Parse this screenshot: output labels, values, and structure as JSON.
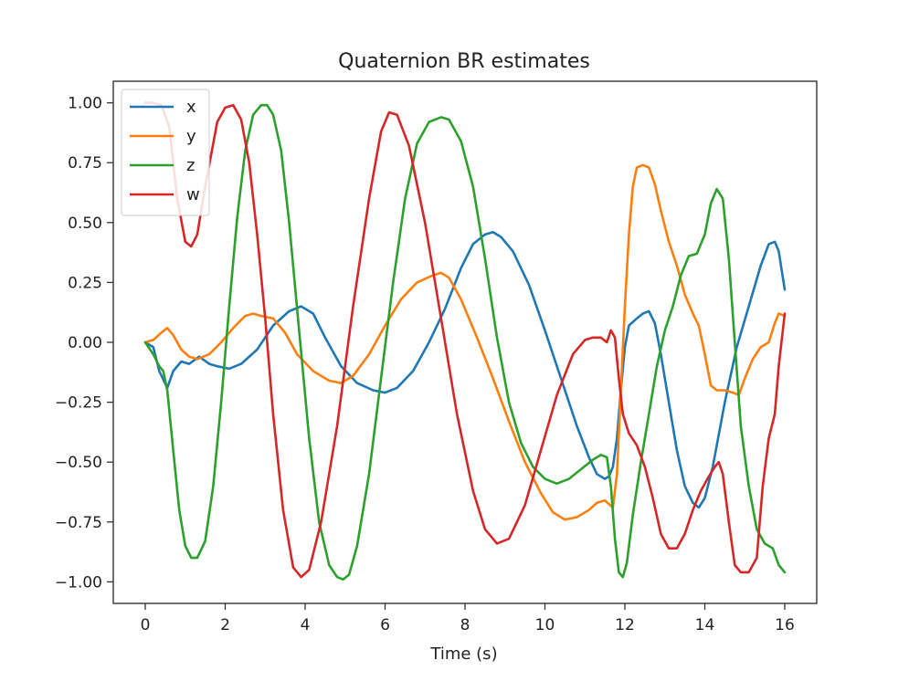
{
  "chart_data": {
    "type": "line",
    "title": "Quaternion BR estimates",
    "xlabel": "Time (s)",
    "ylabel": "",
    "xlim": [
      -0.8,
      16.8
    ],
    "ylim": [
      -1.09,
      1.09
    ],
    "xticks": [
      0,
      2,
      4,
      6,
      8,
      10,
      12,
      14,
      16
    ],
    "xtick_labels": [
      "0",
      "2",
      "4",
      "6",
      "8",
      "10",
      "12",
      "14",
      "16"
    ],
    "yticks": [
      1.0,
      0.75,
      0.5,
      0.25,
      0.0,
      -0.25,
      -0.5,
      -0.75,
      -1.0
    ],
    "ytick_labels": [
      "1.00",
      "0.75",
      "0.50",
      "0.25",
      "0.00",
      "−0.25",
      "−0.50",
      "−0.75",
      "−1.00"
    ],
    "grid": false,
    "legend_position": "upper-left",
    "series": [
      {
        "name": "x",
        "color": "#1f77b4",
        "points": [
          [
            0,
            0
          ],
          [
            0.2,
            -0.02
          ],
          [
            0.35,
            -0.12
          ],
          [
            0.55,
            -0.19
          ],
          [
            0.7,
            -0.12
          ],
          [
            0.9,
            -0.08
          ],
          [
            1.1,
            -0.09
          ],
          [
            1.35,
            -0.06
          ],
          [
            1.6,
            -0.09
          ],
          [
            1.8,
            -0.1
          ],
          [
            2.1,
            -0.11
          ],
          [
            2.4,
            -0.09
          ],
          [
            2.8,
            -0.03
          ],
          [
            3.2,
            0.07
          ],
          [
            3.6,
            0.13
          ],
          [
            3.9,
            0.15
          ],
          [
            4.2,
            0.12
          ],
          [
            4.5,
            0.02
          ],
          [
            4.9,
            -0.1
          ],
          [
            5.3,
            -0.17
          ],
          [
            5.7,
            -0.2
          ],
          [
            6.0,
            -0.21
          ],
          [
            6.3,
            -0.19
          ],
          [
            6.7,
            -0.12
          ],
          [
            7.1,
            0.0
          ],
          [
            7.5,
            0.14
          ],
          [
            7.9,
            0.31
          ],
          [
            8.2,
            0.41
          ],
          [
            8.5,
            0.45
          ],
          [
            8.7,
            0.46
          ],
          [
            8.9,
            0.44
          ],
          [
            9.2,
            0.38
          ],
          [
            9.6,
            0.24
          ],
          [
            10.0,
            0.05
          ],
          [
            10.4,
            -0.15
          ],
          [
            10.8,
            -0.35
          ],
          [
            11.1,
            -0.48
          ],
          [
            11.3,
            -0.55
          ],
          [
            11.5,
            -0.57
          ],
          [
            11.6,
            -0.56
          ],
          [
            11.7,
            -0.52
          ],
          [
            11.8,
            -0.4
          ],
          [
            11.9,
            -0.2
          ],
          [
            12.0,
            -0.02
          ],
          [
            12.1,
            0.07
          ],
          [
            12.3,
            0.1
          ],
          [
            12.45,
            0.12
          ],
          [
            12.6,
            0.13
          ],
          [
            12.75,
            0.08
          ],
          [
            12.9,
            -0.05
          ],
          [
            13.1,
            -0.25
          ],
          [
            13.3,
            -0.45
          ],
          [
            13.5,
            -0.6
          ],
          [
            13.7,
            -0.67
          ],
          [
            13.85,
            -0.69
          ],
          [
            14.0,
            -0.65
          ],
          [
            14.2,
            -0.52
          ],
          [
            14.5,
            -0.25
          ],
          [
            14.8,
            -0.02
          ],
          [
            15.1,
            0.15
          ],
          [
            15.4,
            0.32
          ],
          [
            15.6,
            0.41
          ],
          [
            15.75,
            0.42
          ],
          [
            15.85,
            0.38
          ],
          [
            16.0,
            0.22
          ]
        ]
      },
      {
        "name": "y",
        "color": "#ff7f0e",
        "points": [
          [
            0,
            0
          ],
          [
            0.2,
            0.01
          ],
          [
            0.4,
            0.04
          ],
          [
            0.55,
            0.06
          ],
          [
            0.7,
            0.03
          ],
          [
            0.9,
            -0.03
          ],
          [
            1.1,
            -0.06
          ],
          [
            1.3,
            -0.07
          ],
          [
            1.6,
            -0.05
          ],
          [
            1.9,
            0.0
          ],
          [
            2.2,
            0.06
          ],
          [
            2.5,
            0.11
          ],
          [
            2.7,
            0.12
          ],
          [
            2.9,
            0.11
          ],
          [
            3.2,
            0.1
          ],
          [
            3.5,
            0.04
          ],
          [
            3.8,
            -0.05
          ],
          [
            4.2,
            -0.12
          ],
          [
            4.6,
            -0.16
          ],
          [
            4.9,
            -0.17
          ],
          [
            5.2,
            -0.14
          ],
          [
            5.6,
            -0.05
          ],
          [
            6.0,
            0.07
          ],
          [
            6.4,
            0.18
          ],
          [
            6.8,
            0.25
          ],
          [
            7.2,
            0.28
          ],
          [
            7.4,
            0.29
          ],
          [
            7.6,
            0.27
          ],
          [
            7.9,
            0.18
          ],
          [
            8.3,
            0.02
          ],
          [
            8.7,
            -0.15
          ],
          [
            9.1,
            -0.33
          ],
          [
            9.5,
            -0.5
          ],
          [
            9.9,
            -0.63
          ],
          [
            10.2,
            -0.71
          ],
          [
            10.5,
            -0.74
          ],
          [
            10.8,
            -0.73
          ],
          [
            11.1,
            -0.7
          ],
          [
            11.3,
            -0.67
          ],
          [
            11.5,
            -0.66
          ],
          [
            11.7,
            -0.69
          ],
          [
            11.8,
            -0.55
          ],
          [
            11.9,
            -0.2
          ],
          [
            12.0,
            0.15
          ],
          [
            12.1,
            0.45
          ],
          [
            12.2,
            0.65
          ],
          [
            12.3,
            0.73
          ],
          [
            12.45,
            0.74
          ],
          [
            12.6,
            0.73
          ],
          [
            12.75,
            0.66
          ],
          [
            12.9,
            0.55
          ],
          [
            13.1,
            0.42
          ],
          [
            13.3,
            0.32
          ],
          [
            13.5,
            0.2
          ],
          [
            13.7,
            0.12
          ],
          [
            13.85,
            0.07
          ],
          [
            14.0,
            -0.05
          ],
          [
            14.15,
            -0.18
          ],
          [
            14.3,
            -0.2
          ],
          [
            14.5,
            -0.2
          ],
          [
            14.7,
            -0.21
          ],
          [
            14.85,
            -0.22
          ],
          [
            15.0,
            -0.15
          ],
          [
            15.2,
            -0.07
          ],
          [
            15.4,
            -0.02
          ],
          [
            15.6,
            0.0
          ],
          [
            15.75,
            0.08
          ],
          [
            15.85,
            0.12
          ],
          [
            16.0,
            0.11
          ]
        ]
      },
      {
        "name": "z",
        "color": "#2ca02c",
        "points": [
          [
            0,
            0
          ],
          [
            0.2,
            -0.05
          ],
          [
            0.35,
            -0.1
          ],
          [
            0.45,
            -0.12
          ],
          [
            0.55,
            -0.2
          ],
          [
            0.7,
            -0.45
          ],
          [
            0.85,
            -0.7
          ],
          [
            1.0,
            -0.85
          ],
          [
            1.15,
            -0.9
          ],
          [
            1.3,
            -0.9
          ],
          [
            1.5,
            -0.83
          ],
          [
            1.7,
            -0.6
          ],
          [
            1.9,
            -0.25
          ],
          [
            2.1,
            0.15
          ],
          [
            2.3,
            0.52
          ],
          [
            2.5,
            0.8
          ],
          [
            2.7,
            0.95
          ],
          [
            2.9,
            0.99
          ],
          [
            3.05,
            0.99
          ],
          [
            3.2,
            0.95
          ],
          [
            3.4,
            0.8
          ],
          [
            3.6,
            0.5
          ],
          [
            3.85,
            0.05
          ],
          [
            4.1,
            -0.4
          ],
          [
            4.35,
            -0.75
          ],
          [
            4.6,
            -0.93
          ],
          [
            4.8,
            -0.98
          ],
          [
            4.95,
            -0.99
          ],
          [
            5.1,
            -0.97
          ],
          [
            5.3,
            -0.85
          ],
          [
            5.6,
            -0.55
          ],
          [
            5.9,
            -0.15
          ],
          [
            6.2,
            0.25
          ],
          [
            6.5,
            0.6
          ],
          [
            6.8,
            0.83
          ],
          [
            7.1,
            0.92
          ],
          [
            7.4,
            0.94
          ],
          [
            7.6,
            0.93
          ],
          [
            7.9,
            0.84
          ],
          [
            8.2,
            0.65
          ],
          [
            8.5,
            0.35
          ],
          [
            8.8,
            0.02
          ],
          [
            9.1,
            -0.25
          ],
          [
            9.4,
            -0.42
          ],
          [
            9.7,
            -0.52
          ],
          [
            10.0,
            -0.57
          ],
          [
            10.3,
            -0.59
          ],
          [
            10.6,
            -0.57
          ],
          [
            10.9,
            -0.53
          ],
          [
            11.2,
            -0.49
          ],
          [
            11.4,
            -0.47
          ],
          [
            11.55,
            -0.48
          ],
          [
            11.65,
            -0.6
          ],
          [
            11.75,
            -0.82
          ],
          [
            11.85,
            -0.96
          ],
          [
            11.95,
            -0.98
          ],
          [
            12.05,
            -0.92
          ],
          [
            12.2,
            -0.72
          ],
          [
            12.4,
            -0.5
          ],
          [
            12.6,
            -0.3
          ],
          [
            12.8,
            -0.1
          ],
          [
            13.0,
            0.05
          ],
          [
            13.2,
            0.15
          ],
          [
            13.4,
            0.28
          ],
          [
            13.6,
            0.36
          ],
          [
            13.8,
            0.37
          ],
          [
            14.0,
            0.45
          ],
          [
            14.15,
            0.58
          ],
          [
            14.3,
            0.64
          ],
          [
            14.45,
            0.6
          ],
          [
            14.6,
            0.35
          ],
          [
            14.75,
            0.0
          ],
          [
            14.9,
            -0.35
          ],
          [
            15.1,
            -0.6
          ],
          [
            15.3,
            -0.78
          ],
          [
            15.5,
            -0.84
          ],
          [
            15.7,
            -0.86
          ],
          [
            15.85,
            -0.93
          ],
          [
            16.0,
            -0.96
          ]
        ]
      },
      {
        "name": "w",
        "color": "#d62728",
        "points": [
          [
            0,
            1.0
          ],
          [
            0.2,
            1.0
          ],
          [
            0.4,
            0.99
          ],
          [
            0.6,
            0.9
          ],
          [
            0.8,
            0.6
          ],
          [
            1.0,
            0.42
          ],
          [
            1.15,
            0.4
          ],
          [
            1.3,
            0.45
          ],
          [
            1.5,
            0.65
          ],
          [
            1.8,
            0.92
          ],
          [
            2.0,
            0.98
          ],
          [
            2.2,
            0.99
          ],
          [
            2.4,
            0.93
          ],
          [
            2.6,
            0.75
          ],
          [
            2.8,
            0.45
          ],
          [
            3.0,
            0.1
          ],
          [
            3.2,
            -0.3
          ],
          [
            3.45,
            -0.7
          ],
          [
            3.7,
            -0.94
          ],
          [
            3.9,
            -0.98
          ],
          [
            4.1,
            -0.95
          ],
          [
            4.4,
            -0.75
          ],
          [
            4.8,
            -0.35
          ],
          [
            5.2,
            0.15
          ],
          [
            5.6,
            0.6
          ],
          [
            5.9,
            0.88
          ],
          [
            6.1,
            0.96
          ],
          [
            6.3,
            0.95
          ],
          [
            6.6,
            0.82
          ],
          [
            7.0,
            0.5
          ],
          [
            7.4,
            0.1
          ],
          [
            7.8,
            -0.3
          ],
          [
            8.2,
            -0.62
          ],
          [
            8.5,
            -0.78
          ],
          [
            8.8,
            -0.84
          ],
          [
            9.1,
            -0.82
          ],
          [
            9.5,
            -0.68
          ],
          [
            9.9,
            -0.45
          ],
          [
            10.3,
            -0.22
          ],
          [
            10.7,
            -0.05
          ],
          [
            11.0,
            0.01
          ],
          [
            11.2,
            0.02
          ],
          [
            11.4,
            0.02
          ],
          [
            11.55,
            0.0
          ],
          [
            11.65,
            0.05
          ],
          [
            11.75,
            0.02
          ],
          [
            11.85,
            -0.15
          ],
          [
            11.95,
            -0.3
          ],
          [
            12.1,
            -0.38
          ],
          [
            12.3,
            -0.43
          ],
          [
            12.5,
            -0.52
          ],
          [
            12.7,
            -0.65
          ],
          [
            12.9,
            -0.8
          ],
          [
            13.1,
            -0.86
          ],
          [
            13.3,
            -0.86
          ],
          [
            13.5,
            -0.8
          ],
          [
            13.7,
            -0.7
          ],
          [
            13.9,
            -0.62
          ],
          [
            14.1,
            -0.56
          ],
          [
            14.25,
            -0.52
          ],
          [
            14.35,
            -0.5
          ],
          [
            14.45,
            -0.55
          ],
          [
            14.6,
            -0.75
          ],
          [
            14.75,
            -0.93
          ],
          [
            14.9,
            -0.96
          ],
          [
            15.1,
            -0.96
          ],
          [
            15.3,
            -0.9
          ],
          [
            15.45,
            -0.6
          ],
          [
            15.6,
            -0.4
          ],
          [
            15.75,
            -0.3
          ],
          [
            15.85,
            -0.1
          ],
          [
            16.0,
            0.12
          ]
        ]
      }
    ]
  }
}
